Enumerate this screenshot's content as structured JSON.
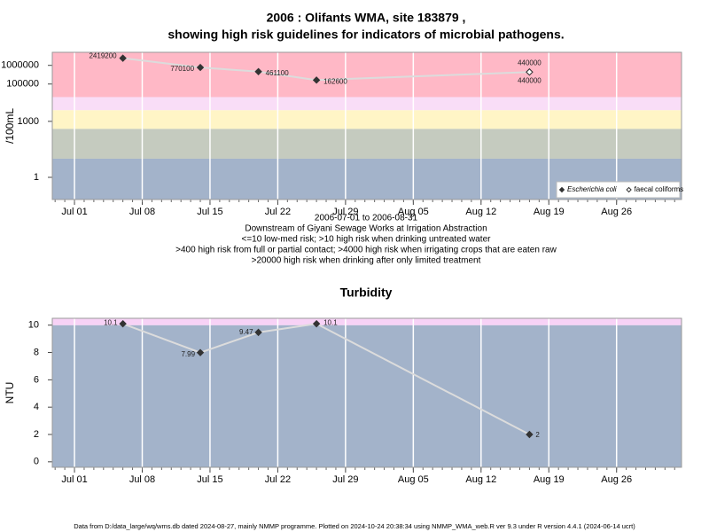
{
  "chart_data": [
    {
      "type": "line",
      "title": [
        "2006 : Olifants WMA, site 183879 ,",
        "showing high risk guidelines for indicators of microbial pathogens."
      ],
      "y_label": "/100mL",
      "log_y": true,
      "x": [
        "2006-07-06",
        "2006-07-14",
        "2006-07-20",
        "2006-07-26",
        "2006-08-17"
      ],
      "series": [
        {
          "name": "Escherichia coli",
          "color": "#333333",
          "marker": "filled",
          "values": [
            2419200,
            770100,
            461100,
            162600,
            440000
          ]
        },
        {
          "name": "faecal coliforms",
          "color": "#333333",
          "marker": "open",
          "values": [
            null,
            null,
            null,
            null,
            440000
          ]
        }
      ],
      "line_color": "#dcdcdc",
      "xlim": [
        "2006-06-28T17:00",
        "2006-09-01T17:00"
      ],
      "xticks": [
        {
          "value": "2006-07-01",
          "label": "Jul 01"
        },
        {
          "value": "2006-07-08",
          "label": "Jul 08"
        },
        {
          "value": "2006-07-15",
          "label": "Jul 15"
        },
        {
          "value": "2006-07-22",
          "label": "Jul 22"
        },
        {
          "value": "2006-07-29",
          "label": "Jul 29"
        },
        {
          "value": "2006-08-05",
          "label": "Aug 05"
        },
        {
          "value": "2006-08-12",
          "label": "Aug 12"
        },
        {
          "value": "2006-08-19",
          "label": "Aug 19"
        },
        {
          "value": "2006-08-26",
          "label": "Aug 26"
        }
      ],
      "ylim": [
        0.065,
        5000000
      ],
      "yticks": [
        1,
        1000,
        100000,
        1000000
      ],
      "thresholds": [
        10,
        400,
        4000,
        20000
      ],
      "band_colors": [
        "#a3b3ca",
        "#c5cbbf",
        "#fff5c6",
        "#f9ddf7",
        "#ffb8c6"
      ],
      "grid": true,
      "legend": "bottomright",
      "notes": [
        "2006-07-01 to 2006-08-31",
        "Downstream of Giyani Sewage Works at Irrigation Abstraction",
        "<=10 low-med risk; >10 high risk when drinking untreated water",
        ">400 high risk from full or partial contact; >4000 high risk when irrigating crops that are eaten raw",
        ">20000 high risk when drinking after only limited treatment"
      ]
    },
    {
      "type": "line",
      "title": [
        "Turbidity"
      ],
      "y_label": "NTU",
      "log_y": false,
      "x": [
        "2006-07-06",
        "2006-07-14",
        "2006-07-20",
        "2006-07-26",
        "2006-08-17"
      ],
      "values": [
        10.1,
        7.99,
        9.47,
        10.1,
        2
      ],
      "color": "#333333",
      "line_color": "#dcdcdc",
      "xlim": [
        "2006-06-28T17:00",
        "2006-09-01T17:00"
      ],
      "xticks": [
        {
          "value": "2006-07-01",
          "label": "Jul 01"
        },
        {
          "value": "2006-07-08",
          "label": "Jul 08"
        },
        {
          "value": "2006-07-15",
          "label": "Jul 15"
        },
        {
          "value": "2006-07-22",
          "label": "Jul 22"
        },
        {
          "value": "2006-07-29",
          "label": "Jul 29"
        },
        {
          "value": "2006-08-05",
          "label": "Aug 05"
        },
        {
          "value": "2006-08-12",
          "label": "Aug 12"
        },
        {
          "value": "2006-08-19",
          "label": "Aug 19"
        },
        {
          "value": "2006-08-26",
          "label": "Aug 26"
        }
      ],
      "ylim": [
        -0.4,
        10.5
      ],
      "yticks": [
        0,
        2,
        4,
        6,
        8,
        10
      ],
      "thresholds": [
        10
      ],
      "band_colors": [
        "#a3b3ca",
        "#f7d2f6"
      ],
      "grid": true
    }
  ],
  "footer": "Data from D:/data_large/wq/wms.db dated 2024-08-27, mainly NMMP programme. Plotted on 2024-10-24 20:38:34 using NMMP_WMA_web.R ver 9.3 under R version 4.4.1 (2024-06-14 ucrt)"
}
